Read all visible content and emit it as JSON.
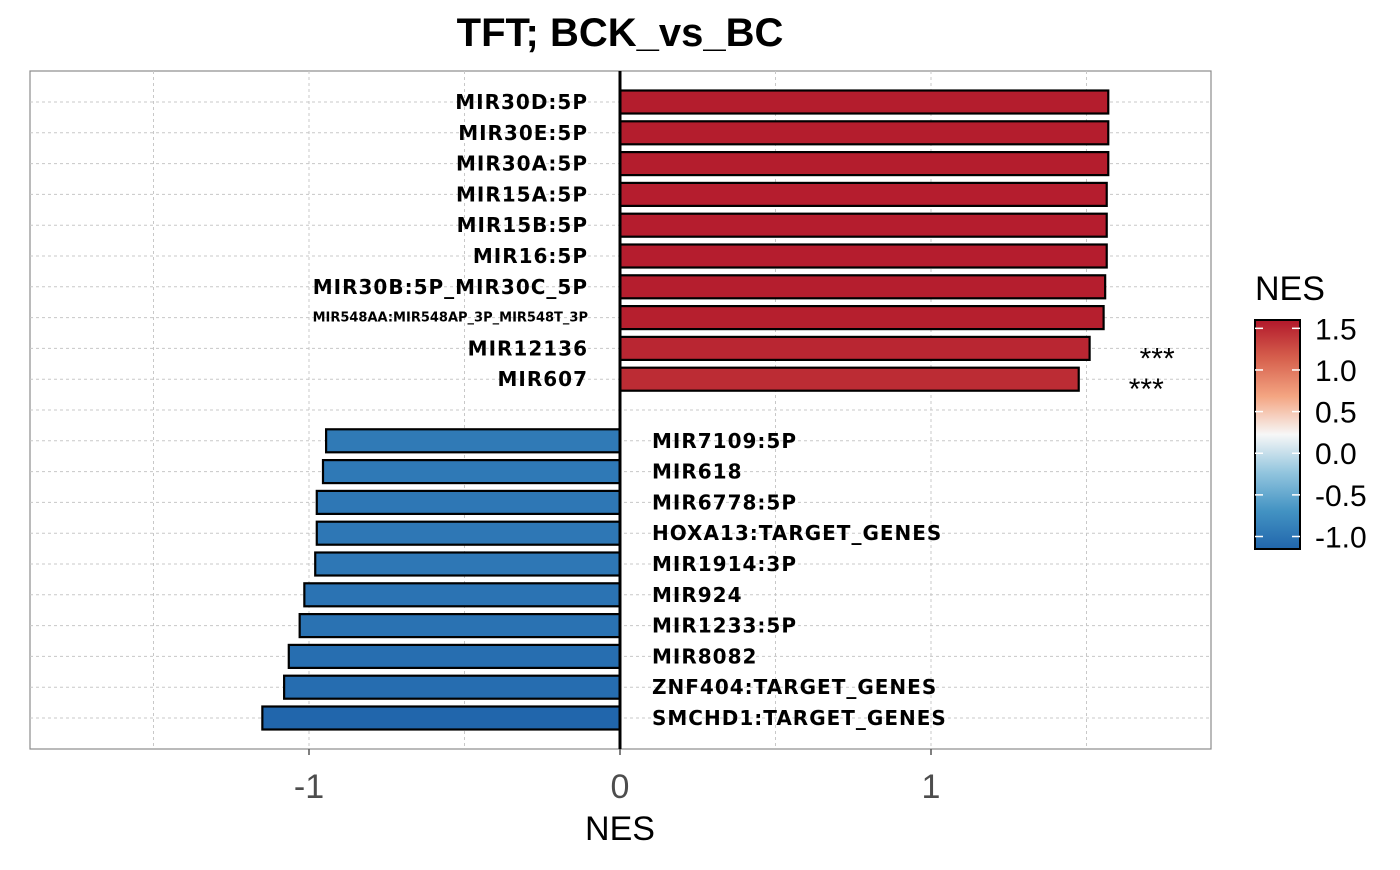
{
  "chart_data": {
    "type": "bar",
    "orientation": "horizontal",
    "title": "TFT; BCK_vs_BC",
    "xlabel": "NES",
    "ylabel": "",
    "xlim": [
      -1.9,
      1.9
    ],
    "x_ticks": [
      -1,
      0,
      1
    ],
    "x_tick_labels": [
      "-1",
      "0",
      "1"
    ],
    "grid": true,
    "legend": {
      "title": "NES",
      "type": "colorbar",
      "position": "right",
      "range": [
        -1.15,
        1.6
      ],
      "ticks": [
        1.5,
        1.0,
        0.5,
        0.0,
        -0.5,
        -1.0
      ],
      "tick_labels": [
        "1.5",
        "1.0",
        "0.5",
        "0.0",
        "-0.5",
        "-1.0"
      ],
      "colors": [
        "#2166AC",
        "#4393C3",
        "#92C5DE",
        "#F7F7F7",
        "#F4A582",
        "#D6604D",
        "#B2182B"
      ]
    },
    "categories": [
      "MIR30D:5P",
      "MIR30E:5P",
      "MIR30A:5P",
      "MIR15A:5P",
      "MIR15B:5P",
      "MIR16:5P",
      "MIR30B:5P_MIR30C_5P",
      "MIR548AA:MIR548AP_3P_MIR548T_3P",
      "MIR12136",
      "MIR607",
      "",
      "MIR7109:5P",
      "MIR618",
      "MIR6778:5P",
      "HOXA13:TARGET_GENES",
      "MIR1914:3P",
      "MIR924",
      "MIR1233:5P",
      "MIR8082",
      "ZNF404:TARGET_GENES",
      "SMCHD1:TARGET_GENES"
    ],
    "values": [
      1.57,
      1.57,
      1.57,
      1.565,
      1.565,
      1.565,
      1.56,
      1.555,
      1.51,
      1.475,
      null,
      -0.945,
      -0.955,
      -0.975,
      -0.975,
      -0.98,
      -1.015,
      -1.03,
      -1.065,
      -1.08,
      -1.15
    ],
    "annotations": [
      "",
      "",
      "",
      "",
      "",
      "",
      "",
      "",
      "***",
      "***",
      "",
      "",
      "",
      "",
      "",
      "",
      "",
      "",
      "",
      "",
      ""
    ]
  }
}
